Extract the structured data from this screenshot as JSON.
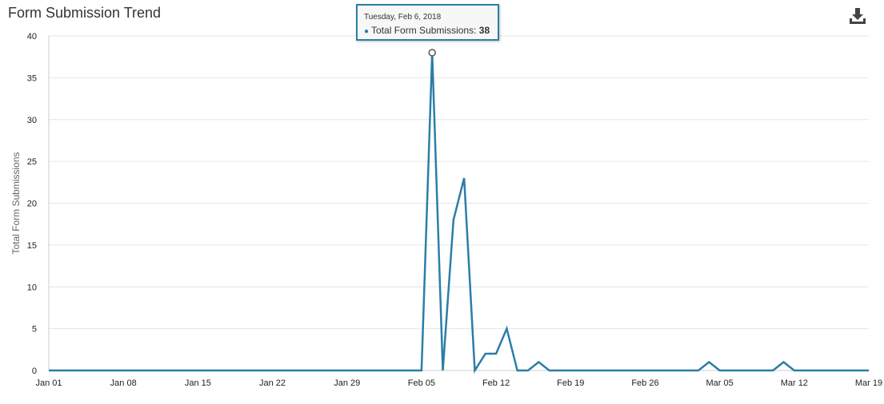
{
  "header": {
    "title": "Form Submission Trend",
    "download_icon": "download-icon"
  },
  "colors": {
    "series": "#2b7ea6",
    "grid": "#e6e6e6",
    "axis": "#cccccc"
  },
  "tooltip": {
    "date": "Tuesday, Feb 6, 2018",
    "series_name": "Total Form Submissions:",
    "value": "38"
  },
  "chart_data": {
    "type": "line",
    "title": "Form Submission Trend",
    "ylabel": "Total Form Submissions",
    "xlabel": "",
    "ylim": [
      0,
      40
    ],
    "yticks": [
      0,
      5,
      10,
      15,
      20,
      25,
      30,
      35,
      40
    ],
    "xlim": [
      "2018-01-01",
      "2018-03-19"
    ],
    "xticks": [
      {
        "date": "2018-01-01",
        "label": "Jan 01"
      },
      {
        "date": "2018-01-08",
        "label": "Jan 08"
      },
      {
        "date": "2018-01-15",
        "label": "Jan 15"
      },
      {
        "date": "2018-01-22",
        "label": "Jan 22"
      },
      {
        "date": "2018-01-29",
        "label": "Jan 29"
      },
      {
        "date": "2018-02-05",
        "label": "Feb 05"
      },
      {
        "date": "2018-02-12",
        "label": "Feb 12"
      },
      {
        "date": "2018-02-19",
        "label": "Feb 19"
      },
      {
        "date": "2018-02-26",
        "label": "Feb 26"
      },
      {
        "date": "2018-03-05",
        "label": "Mar 05"
      },
      {
        "date": "2018-03-12",
        "label": "Mar 12"
      },
      {
        "date": "2018-03-19",
        "label": "Mar 19"
      }
    ],
    "grid": true,
    "legend": "none",
    "highlight": {
      "x": "2018-02-06",
      "y": 38
    },
    "series": [
      {
        "x": [
          "2018-01-01",
          "2018-01-02",
          "2018-01-03",
          "2018-01-04",
          "2018-01-05",
          "2018-01-06",
          "2018-01-07",
          "2018-01-08",
          "2018-01-09",
          "2018-01-10",
          "2018-01-11",
          "2018-01-12",
          "2018-01-13",
          "2018-01-14",
          "2018-01-15",
          "2018-01-16",
          "2018-01-17",
          "2018-01-18",
          "2018-01-19",
          "2018-01-20",
          "2018-01-21",
          "2018-01-22",
          "2018-01-23",
          "2018-01-24",
          "2018-01-25",
          "2018-01-26",
          "2018-01-27",
          "2018-01-28",
          "2018-01-29",
          "2018-01-30",
          "2018-01-31",
          "2018-02-01",
          "2018-02-02",
          "2018-02-03",
          "2018-02-04",
          "2018-02-05",
          "2018-02-06",
          "2018-02-07",
          "2018-02-08",
          "2018-02-09",
          "2018-02-10",
          "2018-02-11",
          "2018-02-12",
          "2018-02-13",
          "2018-02-14",
          "2018-02-15",
          "2018-02-16",
          "2018-02-17",
          "2018-02-18",
          "2018-02-19",
          "2018-02-20",
          "2018-02-21",
          "2018-02-22",
          "2018-02-23",
          "2018-02-24",
          "2018-02-25",
          "2018-02-26",
          "2018-02-27",
          "2018-02-28",
          "2018-03-01",
          "2018-03-02",
          "2018-03-03",
          "2018-03-04",
          "2018-03-05",
          "2018-03-06",
          "2018-03-07",
          "2018-03-08",
          "2018-03-09",
          "2018-03-10",
          "2018-03-11",
          "2018-03-12",
          "2018-03-13",
          "2018-03-14",
          "2018-03-15",
          "2018-03-16",
          "2018-03-17",
          "2018-03-18",
          "2018-03-19"
        ],
        "values": [
          0,
          0,
          0,
          0,
          0,
          0,
          0,
          0,
          0,
          0,
          0,
          0,
          0,
          0,
          0,
          0,
          0,
          0,
          0,
          0,
          0,
          0,
          0,
          0,
          0,
          0,
          0,
          0,
          0,
          0,
          0,
          0,
          0,
          0,
          0,
          0,
          38,
          0,
          18,
          23,
          0,
          2,
          2,
          5,
          0,
          0,
          1,
          0,
          0,
          0,
          0,
          0,
          0,
          0,
          0,
          0,
          0,
          0,
          0,
          0,
          0,
          0,
          1,
          0,
          0,
          0,
          0,
          0,
          0,
          1,
          0,
          0,
          0,
          0,
          0,
          0,
          0,
          0
        ]
      }
    ]
  }
}
